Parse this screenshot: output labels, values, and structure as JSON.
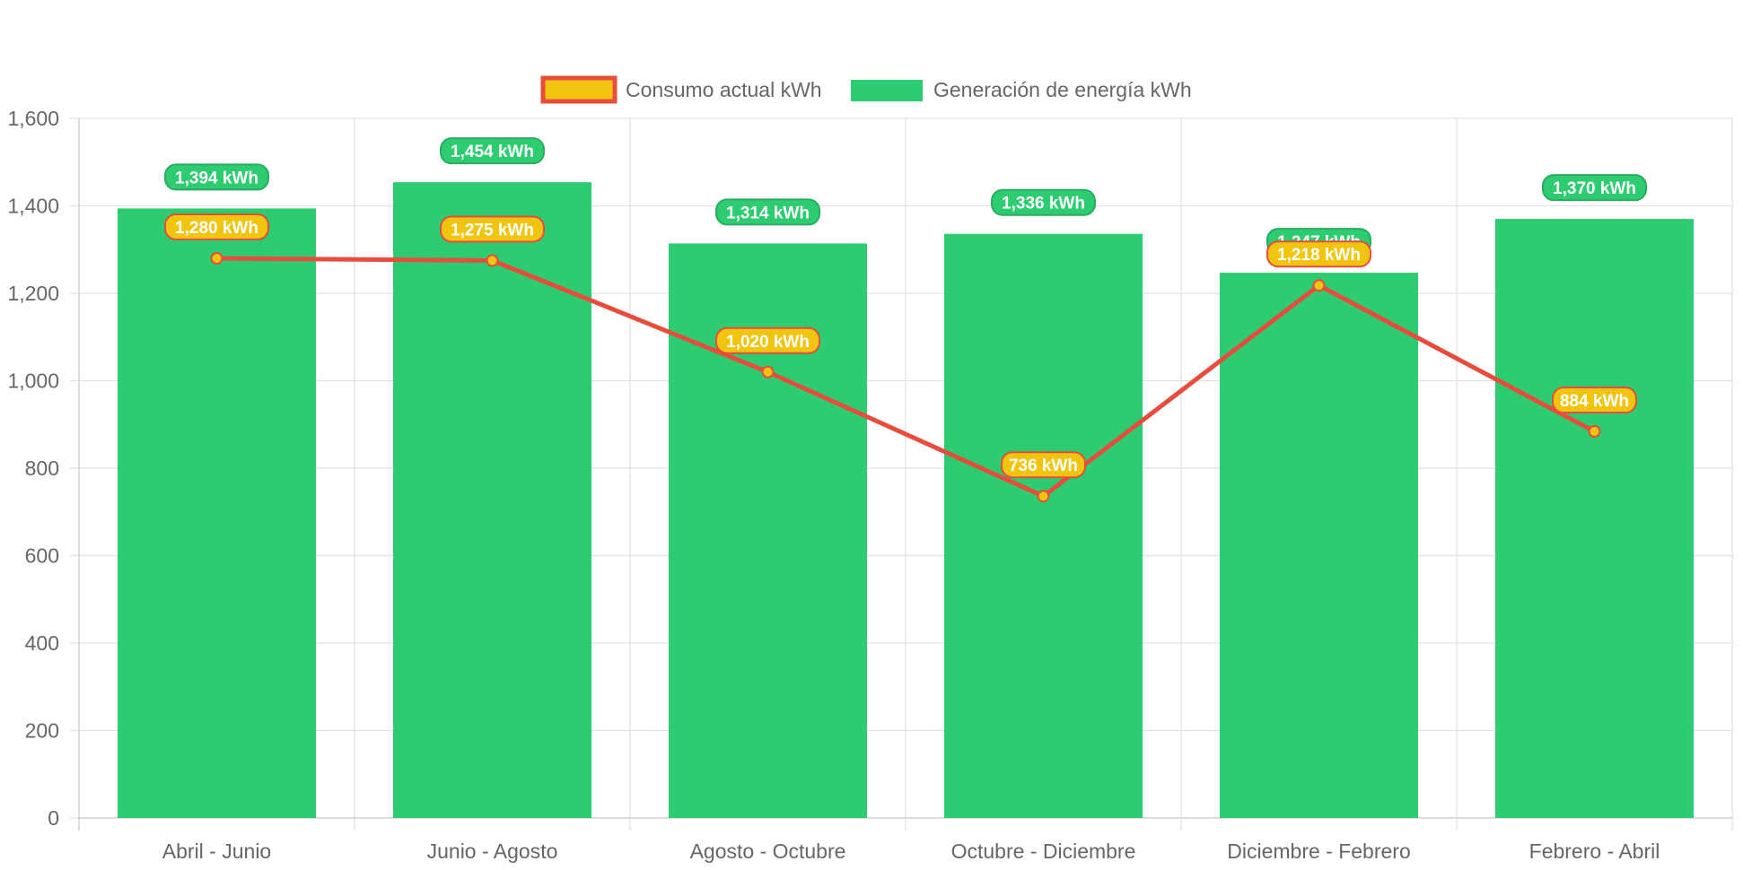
{
  "chart_data": {
    "type": "bar",
    "categories": [
      "Abril - Junio",
      "Junio - Agosto",
      "Agosto - Octubre",
      "Octubre - Diciembre",
      "Diciembre - Febrero",
      "Febrero - Abril"
    ],
    "series": [
      {
        "name": "Consumo actual kWh",
        "type": "line",
        "values": [
          1280,
          1275,
          1020,
          736,
          1218,
          884
        ],
        "labels": [
          "1,280 kWh",
          "1,275 kWh",
          "1,020 kWh",
          "736 kWh",
          "1,218 kWh",
          "884 kWh"
        ],
        "color": "#e74c3c",
        "fill": "#f1c40f"
      },
      {
        "name": "Generación de energía kWh",
        "type": "bar",
        "values": [
          1394,
          1454,
          1314,
          1336,
          1247,
          1370
        ],
        "labels": [
          "1,394 kWh",
          "1,454 kWh",
          "1,314 kWh",
          "1,336 kWh",
          "1,247 kWh",
          "1,370 kWh"
        ],
        "color": "#2ecc71",
        "label_border": "#27ae60"
      }
    ],
    "yticks": [
      "0",
      "200",
      "400",
      "600",
      "800",
      "1,000",
      "1,200",
      "1,400",
      "1,600"
    ],
    "ylim": [
      0,
      1600
    ],
    "grid": true,
    "legend": "top-center"
  }
}
